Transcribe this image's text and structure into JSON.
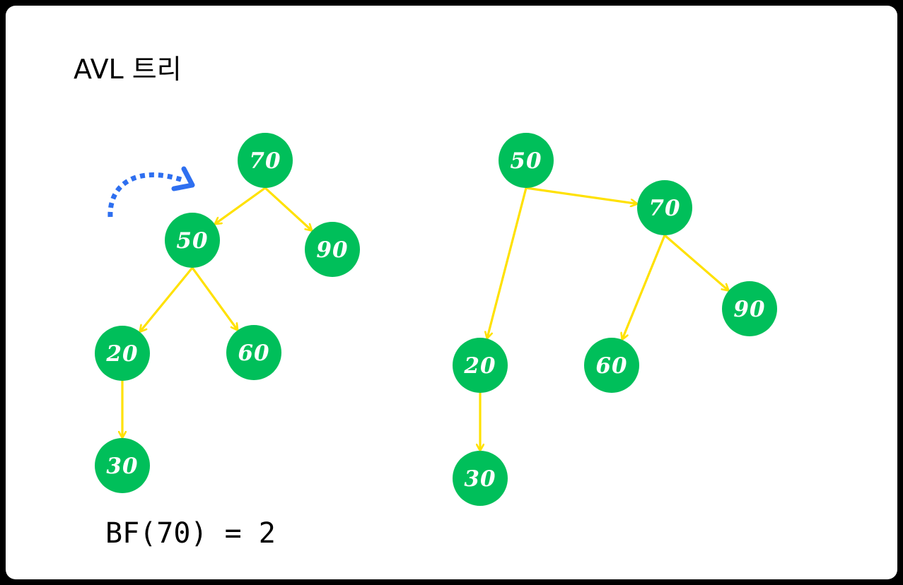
{
  "title": "AVL 트리",
  "formula": "BF(70) = 2",
  "colors": {
    "node_fill": "#00BF5A",
    "node_text": "#FFFFFF",
    "edge": "#FFE100",
    "rotation_arrow": "#2E6FF0",
    "border": "#000000"
  },
  "before_tree": {
    "nodes": [
      {
        "id": "b70",
        "label": "70"
      },
      {
        "id": "b50",
        "label": "50"
      },
      {
        "id": "b90",
        "label": "90"
      },
      {
        "id": "b20",
        "label": "20"
      },
      {
        "id": "b60",
        "label": "60"
      },
      {
        "id": "b30",
        "label": "30"
      }
    ],
    "edges": [
      {
        "from": "b70",
        "to": "b50"
      },
      {
        "from": "b70",
        "to": "b90"
      },
      {
        "from": "b50",
        "to": "b20"
      },
      {
        "from": "b50",
        "to": "b60"
      },
      {
        "from": "b20",
        "to": "b30"
      }
    ]
  },
  "after_tree": {
    "nodes": [
      {
        "id": "a50",
        "label": "50"
      },
      {
        "id": "a70",
        "label": "70"
      },
      {
        "id": "a90",
        "label": "90"
      },
      {
        "id": "a20",
        "label": "20"
      },
      {
        "id": "a60",
        "label": "60"
      },
      {
        "id": "a30",
        "label": "30"
      }
    ],
    "edges": [
      {
        "from": "a50",
        "to": "a70"
      },
      {
        "from": "a50",
        "to": "a20"
      },
      {
        "from": "a70",
        "to": "a60"
      },
      {
        "from": "a70",
        "to": "a90"
      },
      {
        "from": "a20",
        "to": "a30"
      }
    ]
  },
  "rotation_indicator": {
    "icon": "rotate-right-arrow-icon"
  }
}
